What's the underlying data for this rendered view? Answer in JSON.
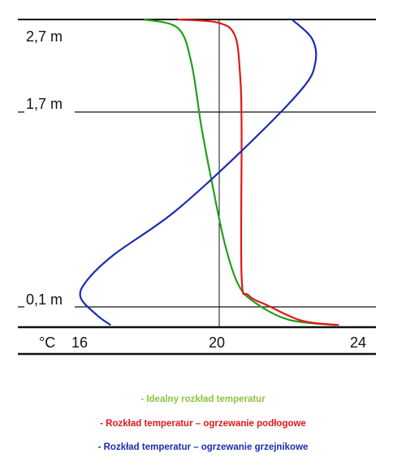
{
  "chart_data": {
    "type": "line",
    "title": "",
    "xlabel": "",
    "ylabel": "",
    "x_unit": "°C",
    "xlim": [
      13.3,
      25.4
    ],
    "ylim": [
      -0.18,
      2.7
    ],
    "x_ticks": [
      {
        "value": 16,
        "label": "16"
      },
      {
        "value": 20,
        "label": "20"
      },
      {
        "value": 24,
        "label": "24"
      }
    ],
    "y_ticks": [
      {
        "value": 2.7,
        "label": "2,7 m"
      },
      {
        "value": 1.7,
        "label": "1,7 m"
      },
      {
        "value": 0.1,
        "label": "0,1 m"
      }
    ],
    "reference_x": 20,
    "colors": {
      "green": "#22a018",
      "red": "#e01818",
      "blue": "#1c2cb0",
      "axis": "#111111"
    },
    "series": [
      {
        "name": "Idealny rozkład temperatur",
        "color": "#22a018",
        "points": [
          [
            17.6,
            2.7
          ],
          [
            18.6,
            2.62
          ],
          [
            19.0,
            2.3
          ],
          [
            19.3,
            1.7
          ],
          [
            19.6,
            1.2
          ],
          [
            20.0,
            0.6
          ],
          [
            20.4,
            0.22
          ],
          [
            20.9,
            0.05
          ],
          [
            21.9,
            -0.11
          ],
          [
            23.3,
            -0.16
          ]
        ]
      },
      {
        "name": "Rozkład temperatur – ogrzewanie podłogowe",
        "color": "#e01818",
        "points": [
          [
            18.6,
            2.7
          ],
          [
            19.8,
            2.67
          ],
          [
            20.3,
            2.55
          ],
          [
            20.45,
            2.2
          ],
          [
            20.5,
            1.7
          ],
          [
            20.5,
            0.3
          ],
          [
            20.7,
            0.12
          ],
          [
            21.3,
            0.02
          ],
          [
            22.3,
            -0.12
          ],
          [
            23.4,
            -0.16
          ]
        ]
      },
      {
        "name": "Rozkład temperatur – ogrzewanie grzejnikowe",
        "color": "#1c2cb0",
        "points": [
          [
            22.0,
            2.7
          ],
          [
            22.6,
            2.52
          ],
          [
            22.7,
            2.3
          ],
          [
            22.3,
            2.05
          ],
          [
            20.6,
            1.5
          ],
          [
            18.5,
            0.9
          ],
          [
            16.7,
            0.5
          ],
          [
            15.9,
            0.26
          ],
          [
            15.7,
            0.1
          ],
          [
            16.2,
            -0.07
          ],
          [
            16.6,
            -0.16
          ]
        ]
      }
    ]
  },
  "legend": {
    "items": [
      {
        "text": "- Idealny rozkład temperatur",
        "color": "#8cc43c"
      },
      {
        "text": "- Rozkład temperatur – ogrzewanie podłogowe",
        "color": "#e01818"
      },
      {
        "text": "- Rozkład temperatur – ogrzewanie grzejnikowe",
        "color": "#1c2cb0"
      }
    ]
  }
}
